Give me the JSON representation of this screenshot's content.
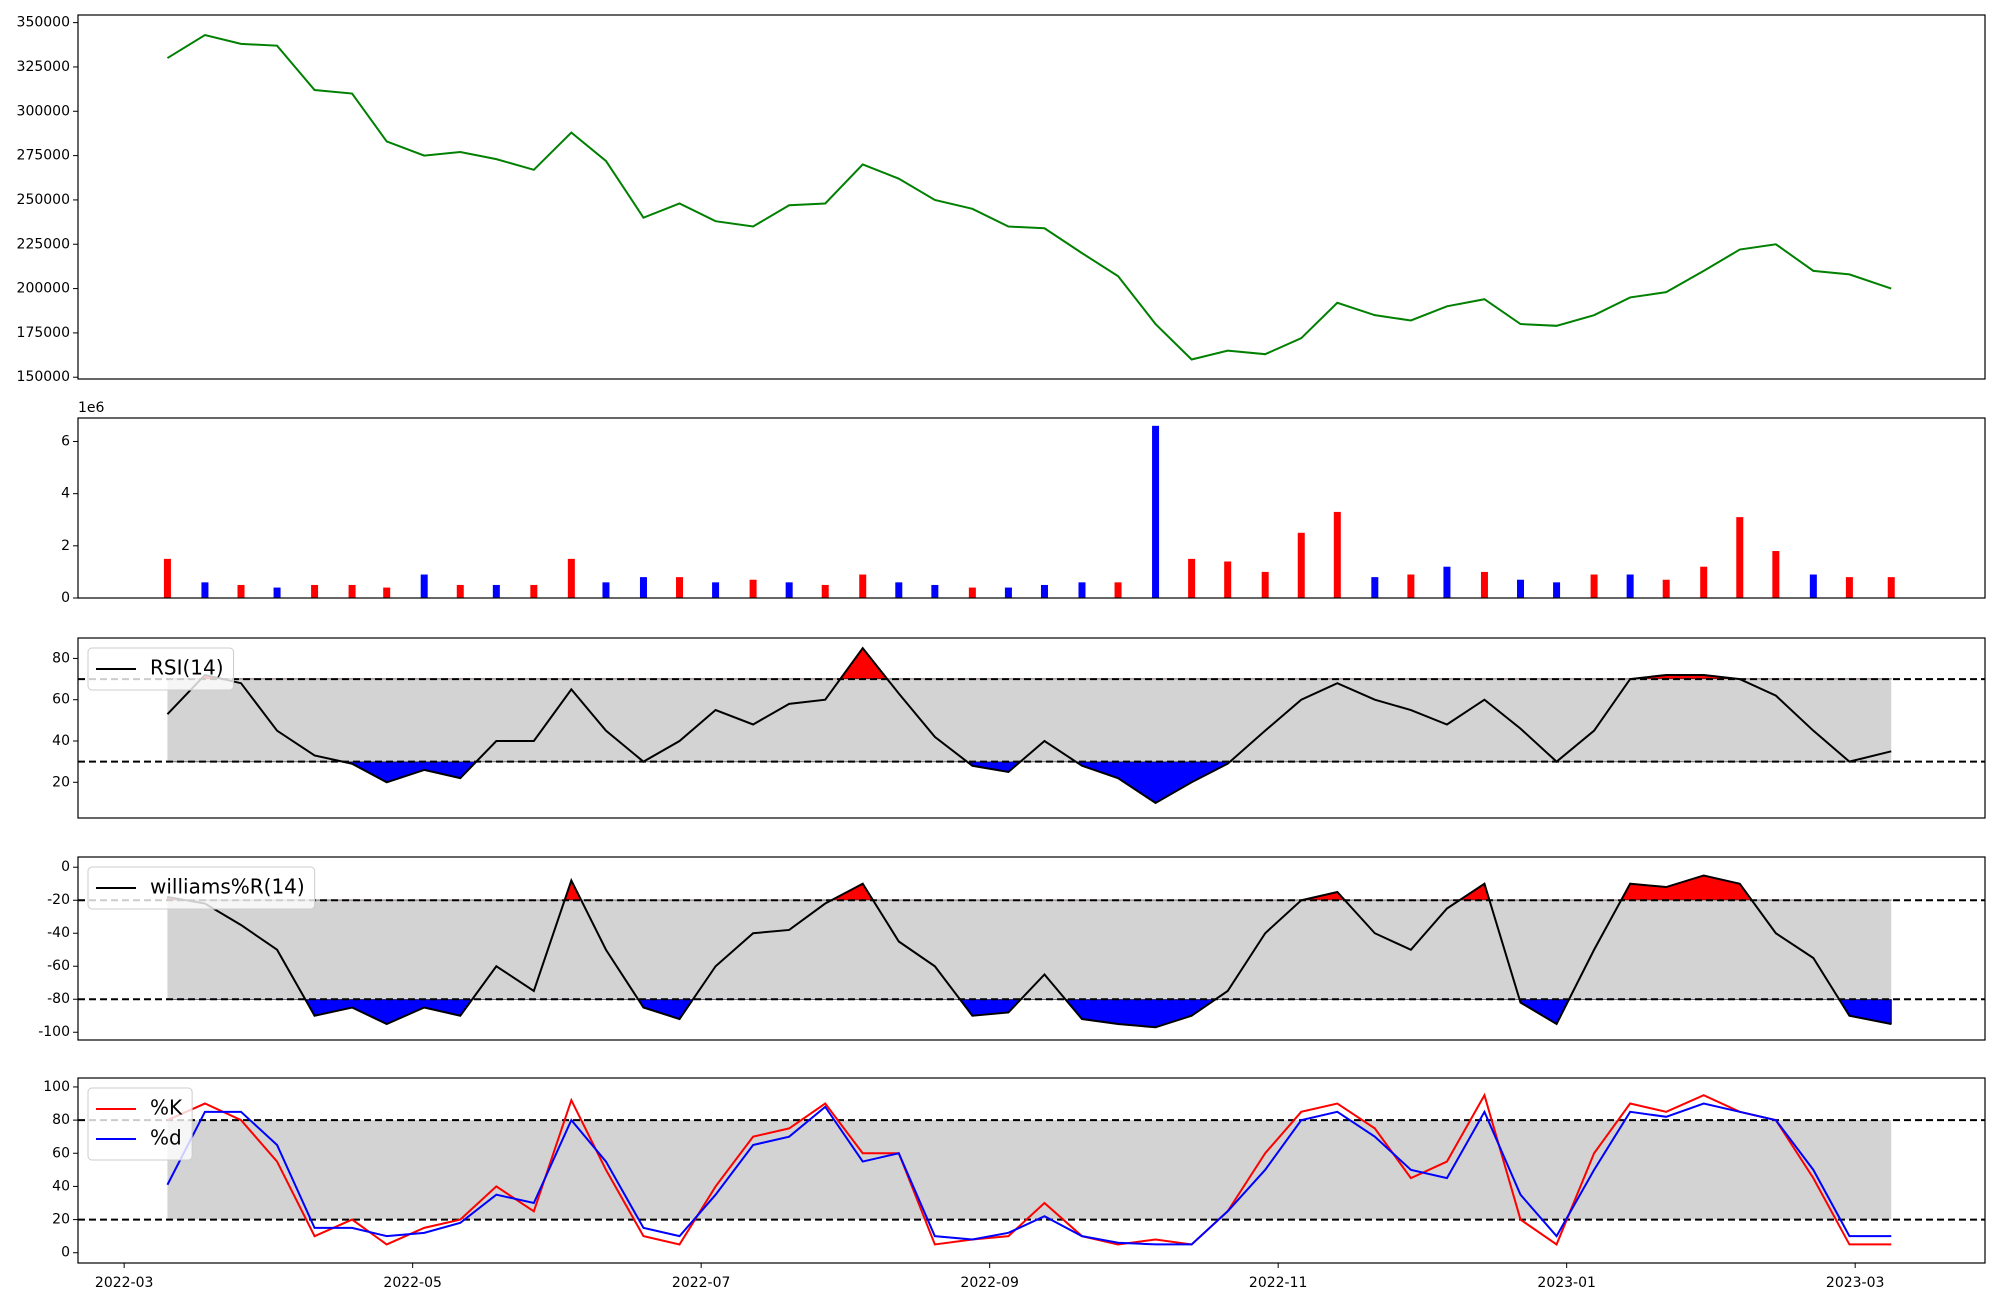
{
  "chart_data": [
    {
      "type": "line",
      "xlim": [
        -0.32,
        12.9
      ],
      "ylim": [
        149000,
        354300
      ],
      "yticks": [
        150000,
        175000,
        200000,
        225000,
        250000,
        275000,
        300000,
        325000,
        350000
      ],
      "x": [
        0.3,
        0.56,
        0.81,
        1.06,
        1.32,
        1.58,
        1.82,
        2.08,
        2.33,
        2.58,
        2.84,
        3.1,
        3.34,
        3.6,
        3.85,
        4.1,
        4.36,
        4.61,
        4.86,
        5.12,
        5.37,
        5.62,
        5.88,
        6.13,
        6.38,
        6.64,
        6.89,
        7.15,
        7.4,
        7.65,
        7.91,
        8.16,
        8.41,
        8.67,
        8.92,
        9.17,
        9.43,
        9.68,
        9.93,
        10.19,
        10.44,
        10.69,
        10.95,
        11.2,
        11.45,
        11.71,
        11.96,
        12.25
      ],
      "color": "green",
      "values": [
        330000,
        343000,
        338000,
        337000,
        312000,
        310000,
        283000,
        275000,
        277000,
        273000,
        267000,
        288000,
        272000,
        240000,
        248000,
        238000,
        235000,
        247000,
        248000,
        270000,
        262000,
        250000,
        245000,
        235000,
        234000,
        220000,
        207000,
        180000,
        160000,
        165000,
        163000,
        172000,
        192000,
        185000,
        182000,
        190000,
        194000,
        180000,
        179000,
        185000,
        195000,
        198000,
        210000,
        222000,
        225000,
        210000,
        208000,
        200000
      ]
    },
    {
      "type": "bar",
      "xlim": [
        -0.32,
        12.9
      ],
      "ylim": [
        0,
        6.9
      ],
      "yticks": [
        0,
        2,
        4,
        6
      ],
      "offset_label": "1e6",
      "x": [
        0.3,
        0.56,
        0.81,
        1.06,
        1.32,
        1.58,
        1.82,
        2.08,
        2.33,
        2.58,
        2.84,
        3.1,
        3.34,
        3.6,
        3.85,
        4.1,
        4.36,
        4.61,
        4.86,
        5.12,
        5.37,
        5.62,
        5.88,
        6.13,
        6.38,
        6.64,
        6.89,
        7.15,
        7.4,
        7.65,
        7.91,
        8.16,
        8.41,
        8.67,
        8.92,
        9.17,
        9.43,
        9.68,
        9.93,
        10.19,
        10.44,
        10.69,
        10.95,
        11.2,
        11.45,
        11.71,
        11.96,
        12.25
      ],
      "values": [
        1.5,
        0.6,
        0.5,
        0.4,
        0.5,
        0.5,
        0.4,
        0.9,
        0.5,
        0.5,
        0.5,
        1.5,
        0.6,
        0.8,
        0.8,
        0.6,
        0.7,
        0.6,
        0.5,
        0.9,
        0.6,
        0.5,
        0.4,
        0.4,
        0.5,
        0.6,
        0.6,
        6.6,
        1.5,
        1.4,
        1.0,
        2.5,
        3.3,
        0.8,
        0.9,
        1.2,
        1.0,
        0.7,
        0.6,
        0.9,
        0.9,
        0.7,
        1.2,
        3.1,
        1.8,
        0.9,
        0.8,
        0.8
      ],
      "colors": [
        "red",
        "blue",
        "red",
        "blue",
        "red",
        "red",
        "red",
        "blue",
        "red",
        "blue",
        "red",
        "red",
        "blue",
        "blue",
        "red",
        "blue",
        "red",
        "blue",
        "red",
        "red",
        "blue",
        "blue",
        "red",
        "blue",
        "blue",
        "blue",
        "red",
        "blue",
        "red",
        "red",
        "red",
        "red",
        "red",
        "blue",
        "red",
        "blue",
        "red",
        "blue",
        "blue",
        "red",
        "blue",
        "red",
        "red",
        "red",
        "red",
        "blue",
        "red",
        "red"
      ]
    },
    {
      "type": "line",
      "xlim": [
        -0.32,
        12.9
      ],
      "ylim": [
        2.7,
        89.9
      ],
      "yticks": [
        20,
        40,
        60,
        80
      ],
      "bands": [
        30,
        70
      ],
      "band_color": "#d3d3d3",
      "upper_fill": "red",
      "lower_fill": "blue",
      "legend": "upper left",
      "x": [
        0.3,
        0.56,
        0.81,
        1.06,
        1.32,
        1.58,
        1.82,
        2.08,
        2.33,
        2.58,
        2.84,
        3.1,
        3.34,
        3.6,
        3.85,
        4.1,
        4.36,
        4.61,
        4.86,
        5.12,
        5.37,
        5.62,
        5.88,
        6.13,
        6.38,
        6.64,
        6.89,
        7.15,
        7.4,
        7.65,
        7.91,
        8.16,
        8.41,
        8.67,
        8.92,
        9.17,
        9.43,
        9.68,
        9.93,
        10.19,
        10.44,
        10.69,
        10.95,
        11.2,
        11.45,
        11.71,
        11.96,
        12.25
      ],
      "series": [
        {
          "name": "RSI(14)",
          "color": "black",
          "values": [
            53,
            72,
            68,
            45,
            33,
            29,
            20,
            26,
            22,
            40,
            40,
            65,
            45,
            30,
            40,
            55,
            48,
            58,
            60,
            85,
            63,
            42,
            28,
            25,
            40,
            28,
            22,
            10,
            20,
            29,
            45,
            60,
            68,
            60,
            55,
            48,
            60,
            46,
            30,
            45,
            70,
            72,
            72,
            70,
            62,
            45,
            30,
            35
          ]
        }
      ]
    },
    {
      "type": "line",
      "xlim": [
        -0.32,
        12.9
      ],
      "ylim": [
        -104.7,
        6.2
      ],
      "yticks": [
        -100,
        -80,
        -60,
        -40,
        -20,
        0
      ],
      "bands": [
        -80,
        -20
      ],
      "band_color": "#d3d3d3",
      "upper_fill": "red",
      "lower_fill": "blue",
      "legend": "upper left",
      "x": [
        0.3,
        0.56,
        0.81,
        1.06,
        1.32,
        1.58,
        1.82,
        2.08,
        2.33,
        2.58,
        2.84,
        3.1,
        3.34,
        3.6,
        3.85,
        4.1,
        4.36,
        4.61,
        4.86,
        5.12,
        5.37,
        5.62,
        5.88,
        6.13,
        6.38,
        6.64,
        6.89,
        7.15,
        7.4,
        7.65,
        7.91,
        8.16,
        8.41,
        8.67,
        8.92,
        9.17,
        9.43,
        9.68,
        9.93,
        10.19,
        10.44,
        10.69,
        10.95,
        11.2,
        11.45,
        11.71,
        11.96,
        12.25
      ],
      "series": [
        {
          "name": "williams%R(14)",
          "color": "black",
          "values": [
            -18,
            -22,
            -35,
            -50,
            -90,
            -85,
            -95,
            -85,
            -90,
            -60,
            -75,
            -8,
            -50,
            -85,
            -92,
            -60,
            -40,
            -38,
            -22,
            -10,
            -45,
            -60,
            -90,
            -88,
            -65,
            -92,
            -95,
            -97,
            -90,
            -75,
            -40,
            -20,
            -15,
            -40,
            -50,
            -25,
            -10,
            -82,
            -95,
            -50,
            -10,
            -12,
            -5,
            -10,
            -40,
            -55,
            -90,
            -95
          ]
        }
      ]
    },
    {
      "type": "line",
      "xlim": [
        -0.32,
        12.9
      ],
      "ylim": [
        -6.2,
        105.4
      ],
      "yticks": [
        0,
        20,
        40,
        60,
        80,
        100
      ],
      "bands": [
        20,
        80
      ],
      "band_color": "#d3d3d3",
      "legend": "upper left",
      "xticks": [
        {
          "value": 0,
          "label": "2022-03"
        },
        {
          "value": 2,
          "label": "2022-05"
        },
        {
          "value": 4,
          "label": "2022-07"
        },
        {
          "value": 6,
          "label": "2022-09"
        },
        {
          "value": 8,
          "label": "2022-11"
        },
        {
          "value": 10,
          "label": "2023-01"
        },
        {
          "value": 12,
          "label": "2023-03"
        }
      ],
      "x": [
        0.3,
        0.56,
        0.81,
        1.06,
        1.32,
        1.58,
        1.82,
        2.08,
        2.33,
        2.58,
        2.84,
        3.1,
        3.34,
        3.6,
        3.85,
        4.1,
        4.36,
        4.61,
        4.86,
        5.12,
        5.37,
        5.62,
        5.88,
        6.13,
        6.38,
        6.64,
        6.89,
        7.15,
        7.4,
        7.65,
        7.91,
        8.16,
        8.41,
        8.67,
        8.92,
        9.17,
        9.43,
        9.68,
        9.93,
        10.19,
        10.44,
        10.69,
        10.95,
        11.2,
        11.45,
        11.71,
        11.96,
        12.25
      ],
      "series": [
        {
          "name": "%K",
          "color": "red",
          "values": [
            80,
            90,
            80,
            55,
            10,
            20,
            5,
            15,
            20,
            40,
            25,
            92,
            50,
            10,
            5,
            40,
            70,
            75,
            90,
            60,
            60,
            5,
            8,
            10,
            30,
            10,
            5,
            8,
            5,
            25,
            60,
            85,
            90,
            75,
            45,
            55,
            95,
            20,
            5,
            60,
            90,
            85,
            95,
            85,
            80,
            45,
            5,
            5
          ]
        },
        {
          "name": "%d",
          "color": "blue",
          "values": [
            41,
            85,
            85,
            65,
            15,
            15,
            10,
            12,
            18,
            35,
            30,
            80,
            55,
            15,
            10,
            35,
            65,
            70,
            88,
            55,
            60,
            10,
            8,
            12,
            22,
            10,
            6,
            5,
            5,
            25,
            50,
            80,
            85,
            70,
            50,
            45,
            85,
            35,
            10,
            50,
            85,
            82,
            90,
            85,
            80,
            50,
            10,
            10
          ]
        }
      ]
    }
  ]
}
